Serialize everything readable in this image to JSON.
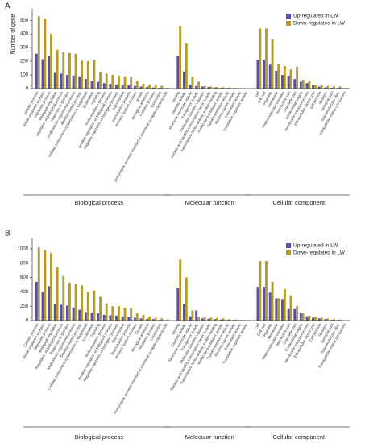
{
  "chart_data": [
    {
      "type": "bar",
      "panel": "A",
      "ylabel": "Number of gene",
      "ylim": [
        0,
        560
      ],
      "yticks": [
        0,
        100,
        200,
        300,
        400,
        500
      ],
      "legend": "top-right",
      "groups": [
        {
          "name": "Biological process",
          "categories": [
            "cellular process",
            "single-organism process",
            "metabolic process",
            "biological regulation",
            "regulation of biological process",
            "response to stimulus",
            "multicellular organismal process",
            "developmental process",
            "cellular component organization or biogenesis",
            "localization",
            "signaling",
            "multi-organism process",
            "positive regulation of biological process",
            "negative regulation of biological process",
            "reproduction",
            "reproductive process",
            "immune system process",
            "growth",
            "biological adhesion",
            "rhythmic process",
            "locomotion",
            "presynaptic process involved in chemical synaptic transmission"
          ]
        },
        {
          "name": "Molecular function",
          "categories": [
            "binding",
            "catalytic activity",
            "structural molecule activity",
            "transporter activity",
            "molecular function regulator",
            "nucleic acid binding transcription factor activity",
            "transcription factor activity, protein binding",
            "molecular transducer activity",
            "signal transducer activity",
            "electron carrier activity",
            "antioxidant activity",
            "translation regulator activity"
          ]
        },
        {
          "name": "Cellular component",
          "categories": [
            "cell",
            "cell part",
            "organelle",
            "membrane",
            "macromolecular complex",
            "membrane part",
            "organelle part",
            "extracellular region",
            "membrane-enclosed lumen",
            "extracellular region part",
            "cell junction",
            "synapse",
            "synapse part",
            "supramolecular fiber",
            "extracellular matrix component"
          ]
        }
      ],
      "series": [
        {
          "name": "Up-regulated in LW",
          "color": "#5a4fa6",
          "values": [
            255,
            215,
            240,
            115,
            110,
            100,
            95,
            90,
            70,
            55,
            50,
            40,
            35,
            30,
            25,
            25,
            20,
            15,
            12,
            8,
            6,
            3,
            240,
            125,
            30,
            20,
            15,
            12,
            8,
            6,
            5,
            3,
            2,
            1,
            210,
            210,
            175,
            130,
            100,
            95,
            70,
            50,
            40,
            30,
            15,
            8,
            6,
            5,
            2
          ]
        },
        {
          "name": "Down-regulated in LW",
          "color": "#b59b2a",
          "values": [
            530,
            510,
            400,
            285,
            265,
            260,
            255,
            205,
            200,
            210,
            120,
            110,
            100,
            95,
            90,
            85,
            55,
            35,
            30,
            25,
            20,
            6,
            460,
            330,
            85,
            50,
            20,
            15,
            12,
            10,
            8,
            5,
            3,
            2,
            440,
            440,
            360,
            180,
            165,
            140,
            160,
            65,
            55,
            25,
            25,
            20,
            18,
            15,
            5
          ]
        }
      ]
    },
    {
      "type": "bar",
      "panel": "B",
      "ylim": [
        0,
        1100
      ],
      "yticks": [
        0,
        200,
        400,
        600,
        800,
        1000
      ],
      "legend": "top-right",
      "groups": [
        {
          "name": "Biological process",
          "categories": [
            "Cellular process",
            "Single-organism process",
            "Metabolic process",
            "Biological regulation",
            "Regulation of biological process",
            "Response to stimulus",
            "Multicellular organismal process",
            "Developmental process",
            "Cellular component organization or biogenesis",
            "Localization",
            "Signaling",
            "Multi-organism process",
            "Positive regulation of biological process",
            "Negative regulation of biological process",
            "Reproduction",
            "Reproductive process",
            "Immune system process",
            "Growth",
            "Biological adhesion",
            "Rhythmic process",
            "Locomotion",
            "Presynaptic process involved in chemical synaptic transmission"
          ]
        },
        {
          "name": "Molecular function",
          "categories": [
            "Binding",
            "Catalytic activity",
            "Structural molecule activity",
            "Transporter activity",
            "Molecular function regulator",
            "Nucleic acid binding transcription factor activity",
            "Transcription factor activity, protein binding",
            "Molecular transducer activity",
            "Signal transducer activity",
            "Electron carrier activity",
            "Antioxidant activity",
            "Translation regulator activity"
          ]
        },
        {
          "name": "Cellular component",
          "categories": [
            "Cell",
            "Cell part",
            "Organelle",
            "Membrane",
            "Macromolecular complex",
            "Membrane part",
            "Organelle part",
            "Extracellular region",
            "Membrane-enclosed lumen",
            "Extracellular region part",
            "Cell junction",
            "Synapse",
            "Synapse part",
            "Supramolecular fiber",
            "Extracellular matrix component"
          ]
        }
      ],
      "series": [
        {
          "name": "Up-regulated in LW",
          "color": "#5a4fa6",
          "values": [
            540,
            400,
            480,
            230,
            220,
            210,
            180,
            150,
            120,
            110,
            100,
            80,
            75,
            70,
            60,
            50,
            40,
            30,
            25,
            20,
            10,
            5,
            450,
            230,
            60,
            140,
            30,
            25,
            20,
            15,
            10,
            8,
            5,
            3,
            470,
            470,
            390,
            310,
            300,
            160,
            160,
            100,
            60,
            40,
            30,
            20,
            10,
            8,
            3
          ]
        },
        {
          "name": "Down-regulated in LW",
          "color": "#b59b2a",
          "values": [
            1020,
            980,
            940,
            740,
            620,
            530,
            510,
            490,
            400,
            420,
            330,
            240,
            200,
            200,
            180,
            170,
            100,
            80,
            50,
            40,
            30,
            15,
            850,
            600,
            140,
            50,
            45,
            40,
            35,
            30,
            20,
            15,
            10,
            6,
            830,
            830,
            540,
            310,
            440,
            350,
            200,
            100,
            70,
            50,
            40,
            30,
            20,
            15,
            5
          ]
        }
      ]
    }
  ]
}
